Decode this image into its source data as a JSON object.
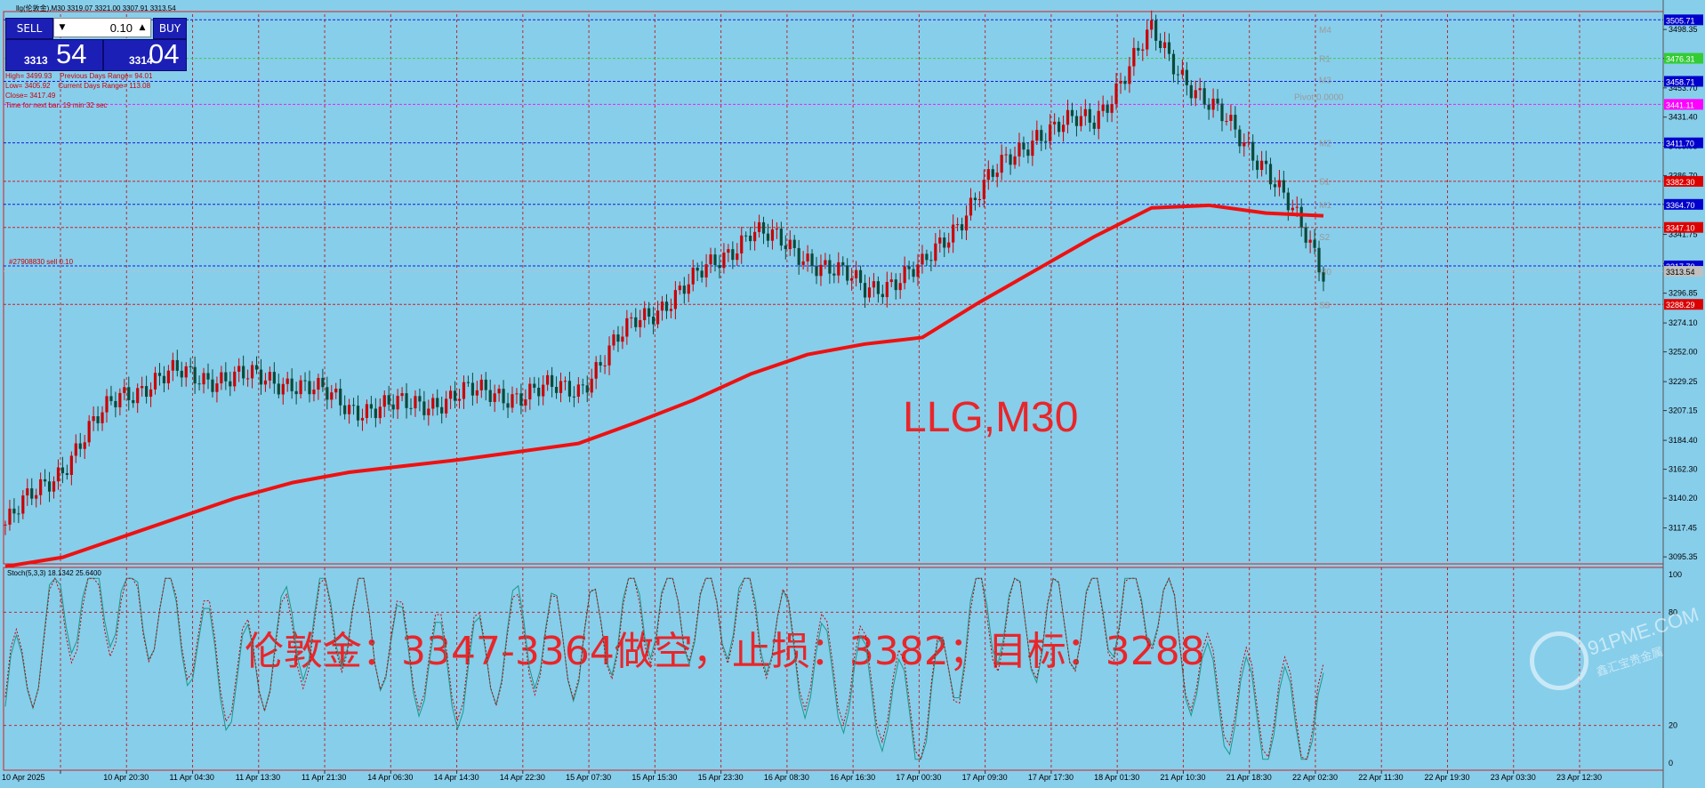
{
  "header": {
    "text": "llg(伦敦金),M30  3319.07 3321.00 3307.91 3313.54"
  },
  "trade_panel": {
    "sell_label": "SELL",
    "buy_label": "BUY",
    "lot_value": "0.10",
    "lot_down_icon": "triangle-down",
    "lot_up_icon": "triangle-up",
    "bid_small": "3313",
    "bid_big": "54",
    "ask_small": "3314",
    "ask_big": "04"
  },
  "info_lines": [
    "High= 3499.93    Previous Days Range= 94.01",
    "Low= 3405.92    Current Days Range= 113.08",
    "Close= 3417.49",
    "Time for next bar: 19 min 32 sec"
  ],
  "order_line_label": "#27908830 sell 0.10",
  "pivot_labels": [
    {
      "label": "M4",
      "value": 3498.5
    },
    {
      "label": "R1",
      "value": 3476.3
    },
    {
      "label": "M3",
      "value": 3460.0
    },
    {
      "label": "Pivot  0.0000",
      "value": 3447.0
    },
    {
      "label": "M2",
      "value": 3411.7
    },
    {
      "label": "S1",
      "value": 3382.5
    },
    {
      "label": "M1",
      "value": 3364.7
    },
    {
      "label": "S2",
      "value": 3340.0
    },
    {
      "label": "M0",
      "value": 3313.5
    },
    {
      "label": "S3",
      "value": 3288.0
    }
  ],
  "price_axis": {
    "ticks": [
      "3498.35",
      "3476.31",
      "3453.70",
      "3431.40",
      "3409.05",
      "3386.70",
      "3364.70",
      "3341.75",
      "3319.45",
      "3296.85",
      "3274.10",
      "3252.00",
      "3229.25",
      "3207.15",
      "3184.40",
      "3162.30",
      "3140.20",
      "3117.45",
      "3095.35"
    ],
    "line_tags": [
      {
        "text": "3505.71",
        "bg": "#0000cc",
        "fg": "#ffffff",
        "value": 3505.71
      },
      {
        "text": "3476.31",
        "bg": "#33cc33",
        "fg": "#ffffff",
        "value": 3476.31
      },
      {
        "text": "3458.71",
        "bg": "#0000cc",
        "fg": "#ffffff",
        "value": 3458.71
      },
      {
        "text": "3441.11",
        "bg": "#ff00ff",
        "fg": "#ffffff",
        "value": 3441.11
      },
      {
        "text": "3411.70",
        "bg": "#0000cc",
        "fg": "#ffffff",
        "value": 3411.7
      },
      {
        "text": "3382.30",
        "bg": "#dd0000",
        "fg": "#ffffff",
        "value": 3382.3
      },
      {
        "text": "3364.70",
        "bg": "#0000cc",
        "fg": "#ffffff",
        "value": 3364.7
      },
      {
        "text": "3347.10",
        "bg": "#dd0000",
        "fg": "#ffffff",
        "value": 3347.1
      },
      {
        "text": "3317.70",
        "bg": "#0000cc",
        "fg": "#ffffff",
        "value": 3317.7
      },
      {
        "text": "3313.54",
        "bg": "#c0c0c0",
        "fg": "#000000",
        "value": 3313.54
      },
      {
        "text": "3288.29",
        "bg": "#dd0000",
        "fg": "#ffffff",
        "value": 3288.29
      }
    ]
  },
  "time_axis": {
    "labels": [
      "10 Apr 2025",
      "10 Apr 20:30",
      "11 Apr 04:30",
      "11 Apr 13:30",
      "11 Apr 21:30",
      "14 Apr 06:30",
      "14 Apr 14:30",
      "14 Apr 22:30",
      "15 Apr 07:30",
      "15 Apr 15:30",
      "15 Apr 23:30",
      "16 Apr 08:30",
      "16 Apr 16:30",
      "17 Apr 00:30",
      "17 Apr 09:30",
      "17 Apr 17:30",
      "18 Apr 01:30",
      "21 Apr 10:30",
      "21 Apr 18:30",
      "22 Apr 02:30",
      "22 Apr 11:30",
      "22 Apr 19:30",
      "23 Apr 03:30",
      "23 Apr 12:30"
    ]
  },
  "chart_title": "LLG,M30",
  "annotation": "伦敦金：3347-3364做空，止损：3382；目标：3288",
  "stoch": {
    "label": "Stoch(5,3,3) 18.1342 25.6400",
    "ticks": [
      "100",
      "80",
      "20",
      "0"
    ]
  },
  "watermark": {
    "site": "91PME.COM",
    "name": "鑫汇宝贵金属"
  },
  "colors": {
    "background": "#87ceeb",
    "bull_candle": "#cc0000",
    "bear_candle": "#0a4a3a",
    "ma_line": "#ee1111",
    "grid": "#cc0000",
    "stoch_main": "#1a9a8a",
    "stoch_signal": "#cc0000"
  },
  "chart_data": {
    "type": "line",
    "x": [
      "10 Apr 2025",
      "10 Apr 20:30",
      "11 Apr 04:30",
      "11 Apr 13:30",
      "11 Apr 21:30",
      "14 Apr 06:30",
      "14 Apr 14:30",
      "14 Apr 22:30",
      "15 Apr 07:30",
      "15 Apr 15:30",
      "15 Apr 23:30",
      "16 Apr 08:30",
      "16 Apr 16:30",
      "17 Apr 00:30",
      "17 Apr 09:30",
      "17 Apr 17:30",
      "18 Apr 01:30",
      "21 Apr 10:30",
      "21 Apr 18:30",
      "22 Apr 02:30",
      "22 Apr 11:30",
      "22 Apr 19:30",
      "23 Apr 03:30",
      "23 Apr 12:30"
    ],
    "series": [
      {
        "values": [
          3120,
          3165,
          3220,
          3235,
          3232,
          3230,
          3210,
          3210,
          3220,
          3220,
          3225,
          3275,
          3305,
          3345,
          3325,
          3300,
          3315,
          3375,
          3420,
          3430,
          3495,
          3440,
          3395,
          3313
        ]
      },
      {
        "values": [
          3088,
          3095,
          3110,
          3125,
          3140,
          3152,
          3160,
          3165,
          3170,
          3176,
          3182,
          3198,
          3215,
          3235,
          3250,
          3258,
          3263,
          3290,
          3315,
          3340,
          3362,
          3364,
          3358,
          3356
        ]
      }
    ],
    "ylim": [
      3090,
      3510
    ],
    "stoch_main": [
      30,
      85,
      90,
      75,
      40,
      70,
      80,
      55,
      45,
      70,
      60,
      85,
      80,
      85,
      50,
      40,
      20,
      85,
      70,
      80,
      90,
      35,
      25,
      20
    ],
    "stoch_signal": [
      35,
      80,
      85,
      78,
      45,
      65,
      78,
      58,
      50,
      65,
      62,
      80,
      82,
      80,
      55,
      45,
      25,
      78,
      72,
      78,
      88,
      40,
      30,
      25
    ]
  }
}
